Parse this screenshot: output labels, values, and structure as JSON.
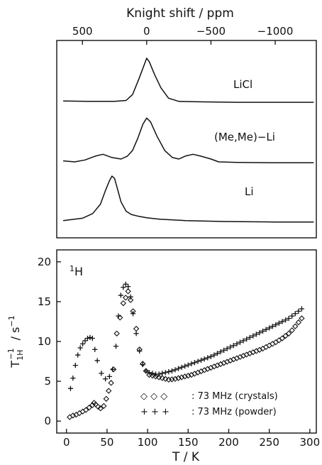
{
  "chart_data": [
    {
      "type": "line",
      "title": "",
      "xlabel": "Knight shift / ppm",
      "xlim": [
        700,
        -1320
      ],
      "x_reversed": true,
      "xticks": [
        500,
        0,
        -500,
        -1000
      ],
      "xtick_labels": [
        "500",
        "0",
        "−500",
        "−1000"
      ],
      "ylabel": "",
      "series": [
        {
          "name": "LiCl",
          "x": [
            650,
            460,
            250,
            160,
            110,
            60,
            20,
            0,
            -20,
            -60,
            -110,
            -170,
            -250,
            -400,
            -700,
            -1000,
            -1300
          ],
          "values": [
            0.06,
            0.05,
            0.05,
            0.07,
            0.2,
            0.55,
            0.85,
            1.0,
            0.92,
            0.65,
            0.35,
            0.12,
            0.05,
            0.04,
            0.03,
            0.03,
            0.03
          ]
        },
        {
          "name": "(Me,Me)−Li",
          "x": [
            650,
            560,
            480,
            400,
            340,
            270,
            200,
            150,
            110,
            70,
            30,
            0,
            -30,
            -80,
            -140,
            -200,
            -250,
            -300,
            -360,
            -420,
            -500,
            -560,
            -700,
            -1000,
            -1300
          ],
          "values": [
            0.08,
            0.06,
            0.1,
            0.18,
            0.22,
            0.15,
            0.12,
            0.18,
            0.3,
            0.55,
            0.85,
            0.98,
            0.9,
            0.6,
            0.3,
            0.15,
            0.12,
            0.18,
            0.22,
            0.18,
            0.12,
            0.06,
            0.05,
            0.04,
            0.04
          ]
        },
        {
          "name": "Li",
          "x": [
            650,
            500,
            420,
            360,
            320,
            290,
            270,
            250,
            230,
            200,
            160,
            120,
            60,
            0,
            -100,
            -300,
            -600,
            -1000,
            -1300
          ],
          "values": [
            0.05,
            0.1,
            0.2,
            0.4,
            0.7,
            0.9,
            1.0,
            0.95,
            0.75,
            0.45,
            0.25,
            0.18,
            0.14,
            0.11,
            0.08,
            0.05,
            0.03,
            0.02,
            0.02
          ]
        }
      ],
      "annotations": [
        "LiCl",
        "(Me,Me)−Li",
        "Li"
      ]
    },
    {
      "type": "scatter",
      "title": "",
      "xlabel": "T / K",
      "ylabel": "T₁ₕ⁻¹ / s⁻¹",
      "ylabel_parts": {
        "base": "T",
        "sup": "−1",
        "sub": "1H",
        "unit": " / s",
        "unit_sup": "−1"
      },
      "xlim": [
        -12,
        308
      ],
      "ylim": [
        -1.5,
        21.5
      ],
      "xticks": [
        0,
        50,
        100,
        150,
        200,
        250,
        300
      ],
      "yticks": [
        0,
        5,
        10,
        15,
        20
      ],
      "nucleus_base": "1",
      "nucleus_sym": "H",
      "legend": [
        {
          "symbols": "◇ ◇ ◇",
          "label": ": 73 MHz (crystals)"
        },
        {
          "symbols": "+ + +",
          "label": ": 73 MHz (powder)"
        }
      ],
      "series": [
        {
          "name": "73 MHz (crystals)",
          "marker": "diamond",
          "x": [
            4,
            8,
            12,
            16,
            20,
            24,
            28,
            32,
            34,
            36,
            39,
            42,
            46,
            49,
            52,
            55,
            58,
            62,
            66,
            70,
            73,
            76,
            79,
            82,
            86,
            90,
            94,
            98,
            102,
            106,
            110,
            114,
            118,
            122,
            126,
            130,
            134,
            138,
            142,
            146,
            150,
            154,
            158,
            162,
            166,
            170,
            174,
            178,
            182,
            186,
            190,
            194,
            198,
            202,
            206,
            210,
            214,
            218,
            222,
            226,
            230,
            234,
            238,
            242,
            246,
            250,
            254,
            258,
            262,
            266,
            270,
            274,
            278,
            282,
            286,
            290
          ],
          "values": [
            0.5,
            0.7,
            0.8,
            1.0,
            1.2,
            1.4,
            1.7,
            2.0,
            2.3,
            2.1,
            1.8,
            1.6,
            1.9,
            2.8,
            3.8,
            4.8,
            6.5,
            11.0,
            13.0,
            14.8,
            15.5,
            16.3,
            15.2,
            13.8,
            11.6,
            9.0,
            7.2,
            6.3,
            5.8,
            5.7,
            5.6,
            5.5,
            5.4,
            5.3,
            5.2,
            5.25,
            5.3,
            5.4,
            5.5,
            5.6,
            5.7,
            5.8,
            5.95,
            6.1,
            6.25,
            6.4,
            6.55,
            6.7,
            6.85,
            7.0,
            7.15,
            7.3,
            7.45,
            7.6,
            7.75,
            7.9,
            8.05,
            8.2,
            8.35,
            8.5,
            8.65,
            8.8,
            8.95,
            9.1,
            9.3,
            9.5,
            9.7,
            9.9,
            10.15,
            10.4,
            10.7,
            11.0,
            11.4,
            11.9,
            12.4,
            12.9
          ]
        },
        {
          "name": "73 MHz (powder)",
          "marker": "plus",
          "x": [
            5,
            8,
            11,
            14,
            17,
            20,
            23,
            26,
            29,
            32,
            35,
            38,
            43,
            48,
            53,
            57,
            61,
            64,
            67,
            70,
            73,
            76,
            79,
            82,
            86,
            90,
            94,
            98,
            102,
            106,
            110,
            114,
            118,
            122,
            126,
            130,
            134,
            138,
            142,
            146,
            150,
            154,
            158,
            162,
            166,
            170,
            174,
            178,
            182,
            186,
            190,
            194,
            198,
            202,
            206,
            210,
            214,
            218,
            222,
            226,
            230,
            234,
            238,
            242,
            246,
            250,
            254,
            258,
            262,
            266,
            270,
            274,
            278,
            282,
            286,
            290
          ],
          "values": [
            4.1,
            5.4,
            7.0,
            8.3,
            9.2,
            9.7,
            10.1,
            10.4,
            10.5,
            10.4,
            9.0,
            7.6,
            6.0,
            5.3,
            5.6,
            6.5,
            9.4,
            13.2,
            15.8,
            16.8,
            17.2,
            16.9,
            15.6,
            13.5,
            11.0,
            8.8,
            7.1,
            6.3,
            6.1,
            6.0,
            5.9,
            5.9,
            6.0,
            6.1,
            6.2,
            6.3,
            6.45,
            6.6,
            6.75,
            6.9,
            7.05,
            7.2,
            7.35,
            7.5,
            7.65,
            7.8,
            7.95,
            8.1,
            8.3,
            8.5,
            8.7,
            8.9,
            9.1,
            9.3,
            9.5,
            9.7,
            9.9,
            10.1,
            10.3,
            10.5,
            10.7,
            10.9,
            11.1,
            11.3,
            11.5,
            11.7,
            11.9,
            12.1,
            12.3,
            12.5,
            12.7,
            12.9,
            13.2,
            13.5,
            13.8,
            14.1
          ]
        }
      ]
    }
  ]
}
